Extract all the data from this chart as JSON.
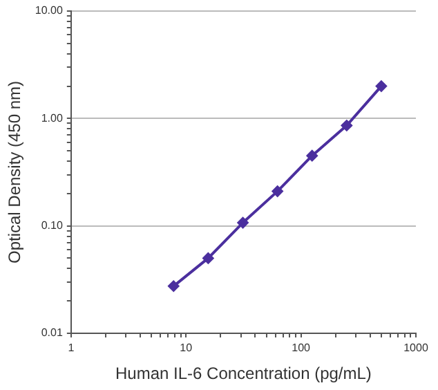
{
  "chart_data": {
    "type": "line",
    "xlabel": "Human IL-6 Concentration (pg/mL)",
    "ylabel": "Optical Density (450 nm)",
    "x": [
      7.8,
      15.6,
      31.25,
      62.5,
      125,
      250,
      500
    ],
    "series": [
      {
        "color": "#4b2f9e",
        "values": [
          0.0275,
          0.05,
          0.107,
          0.21,
          0.45,
          0.86,
          2.0
        ]
      }
    ],
    "log": "xy",
    "xlim": [
      1,
      1000
    ],
    "ylim": [
      0.01,
      10
    ],
    "xticks": [
      1,
      {
        "value": 2,
        "label": null
      },
      {
        "value": 3,
        "label": null
      },
      {
        "value": 4,
        "label": null
      },
      {
        "value": 5,
        "label": null
      },
      {
        "value": 6,
        "label": null
      },
      {
        "value": 7,
        "label": null
      },
      {
        "value": 8,
        "label": null
      },
      {
        "value": 9,
        "label": null
      },
      10,
      {
        "value": 20,
        "label": null
      },
      {
        "value": 30,
        "label": null
      },
      {
        "value": 40,
        "label": null
      },
      {
        "value": 50,
        "label": null
      },
      {
        "value": 60,
        "label": null
      },
      {
        "value": 70,
        "label": null
      },
      {
        "value": 80,
        "label": null
      },
      {
        "value": 90,
        "label": null
      },
      100,
      {
        "value": 200,
        "label": null
      },
      {
        "value": 300,
        "label": null
      },
      {
        "value": 400,
        "label": null
      },
      {
        "value": 500,
        "label": null
      },
      {
        "value": 600,
        "label": null
      },
      {
        "value": 700,
        "label": null
      },
      {
        "value": 800,
        "label": null
      },
      {
        "value": 900,
        "label": null
      },
      1000
    ],
    "yticks": [
      {
        "value": 0.01,
        "label": "0.01"
      },
      {
        "value": 0.02,
        "label": null
      },
      {
        "value": 0.03,
        "label": null
      },
      {
        "value": 0.04,
        "label": null
      },
      {
        "value": 0.05,
        "label": null
      },
      {
        "value": 0.06,
        "label": null
      },
      {
        "value": 0.07,
        "label": null
      },
      {
        "value": 0.08,
        "label": null
      },
      {
        "value": 0.09,
        "label": null
      },
      {
        "value": 0.1,
        "label": "0.10"
      },
      {
        "value": 0.2,
        "label": null
      },
      {
        "value": 0.3,
        "label": null
      },
      {
        "value": 0.4,
        "label": null
      },
      {
        "value": 0.5,
        "label": null
      },
      {
        "value": 0.6,
        "label": null
      },
      {
        "value": 0.7,
        "label": null
      },
      {
        "value": 0.8,
        "label": null
      },
      {
        "value": 0.9,
        "label": null
      },
      {
        "value": 1,
        "label": "1.00"
      },
      {
        "value": 2,
        "label": null
      },
      {
        "value": 3,
        "label": null
      },
      {
        "value": 4,
        "label": null
      },
      {
        "value": 5,
        "label": null
      },
      {
        "value": 6,
        "label": null
      },
      {
        "value": 7,
        "label": null
      },
      {
        "value": 8,
        "label": null
      },
      {
        "value": 9,
        "label": null
      },
      {
        "value": 10,
        "label": "10.00"
      }
    ],
    "grid": "y",
    "marker": "diamond",
    "line_style": "solid"
  }
}
